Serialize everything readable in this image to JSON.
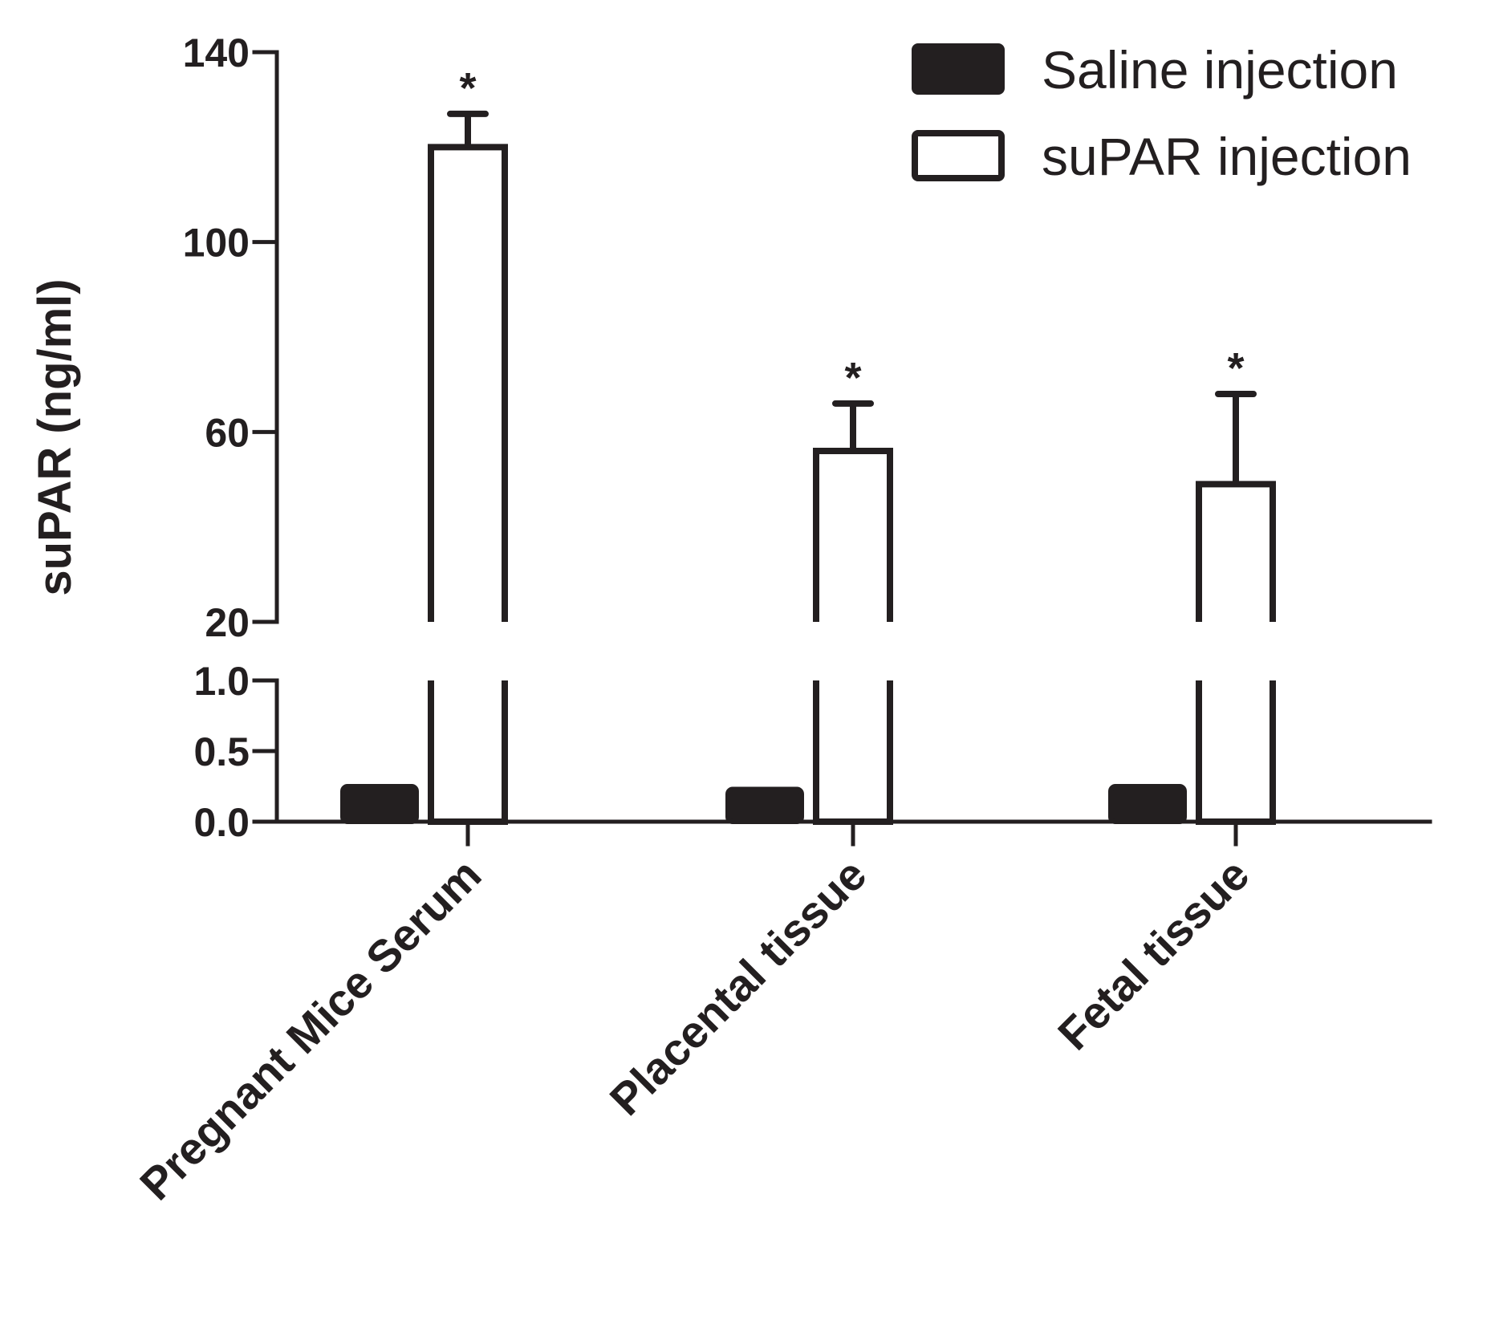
{
  "chart_data": {
    "type": "bar",
    "title": "",
    "xlabel": "",
    "ylabel": "suPAR (ng/ml)",
    "categories": [
      "Pregnant Mice Serum",
      "Placental tissue",
      "Fetal tissue"
    ],
    "series": [
      {
        "name": "Saline injection",
        "values": [
          0.25,
          0.23,
          0.25
        ],
        "errors": [
          0.02,
          0.02,
          0.02
        ],
        "fill": "#231f20"
      },
      {
        "name": "suPAR injection",
        "values": [
          120,
          56,
          49
        ],
        "errors": [
          7,
          10,
          19
        ],
        "fill": "#ffffff"
      }
    ],
    "significance": [
      "*",
      "*",
      "*"
    ],
    "y_axis": {
      "broken": true,
      "lower_segment": {
        "range": [
          0,
          1.0
        ],
        "ticks": [
          "0.0",
          "0.5",
          "1.0"
        ]
      },
      "upper_segment": {
        "range": [
          20,
          140
        ],
        "ticks": [
          "20",
          "60",
          "100",
          "140"
        ]
      }
    },
    "legend": "top-right",
    "grid": false
  }
}
